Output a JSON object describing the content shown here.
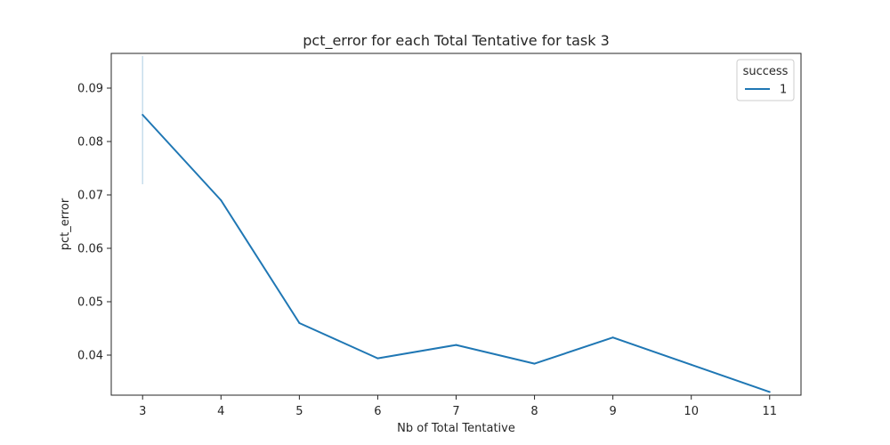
{
  "chart_data": {
    "type": "line",
    "title": "pct_error for each Total Tentative for task 3",
    "xlabel": "Nb of Total Tentative",
    "ylabel": "pct_error",
    "x": [
      3,
      4,
      5,
      6,
      7,
      8,
      9,
      10,
      11
    ],
    "xticks": [
      "3",
      "4",
      "5",
      "6",
      "7",
      "8",
      "9",
      "10",
      "11"
    ],
    "yticks": [
      "0.04",
      "0.05",
      "0.06",
      "0.07",
      "0.08",
      "0.09"
    ],
    "xlim": [
      2.6,
      11.4
    ],
    "ylim": [
      0.0325,
      0.0965
    ],
    "grid": false,
    "legend": {
      "title": "success",
      "placement": "top-right",
      "entries": [
        "1"
      ]
    },
    "series": [
      {
        "name": "1",
        "color": "#1f77b4",
        "values": [
          0.085,
          0.069,
          0.046,
          0.0394,
          0.0419,
          0.0384,
          0.0433,
          0.0382,
          0.0331
        ],
        "error_band": {
          "x": 3,
          "low": 0.072,
          "high": 0.096
        }
      }
    ]
  }
}
